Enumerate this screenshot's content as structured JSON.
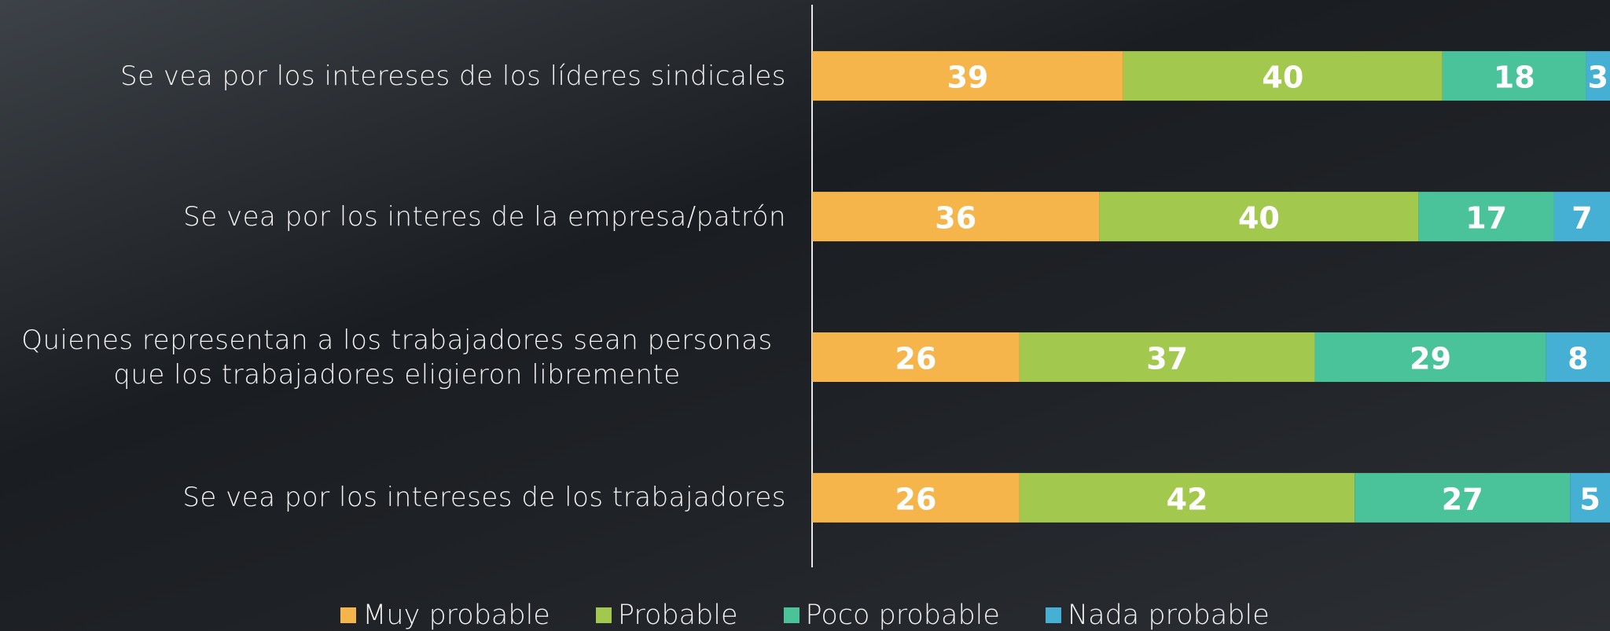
{
  "chart_data": {
    "type": "stacked-barh",
    "categories": [
      "Se vea por los intereses de los líderes sindicales",
      "Se vea por los interes de la empresa/patrón",
      "Quienes representan a los trabajadores sean personas que los trabajadores eligieron libremente",
      "Se vea por los intereses de los trabajadores"
    ],
    "series": [
      {
        "name": "Muy probable",
        "color": "#f5b54a",
        "values": [
          39,
          36,
          26,
          26
        ]
      },
      {
        "name": "Probable",
        "color": "#a2c94e",
        "values": [
          40,
          40,
          37,
          42
        ]
      },
      {
        "name": "Poco probable",
        "color": "#4bc39a",
        "values": [
          18,
          17,
          29,
          27
        ]
      },
      {
        "name": "Nada probable",
        "color": "#45afd4",
        "values": [
          3,
          7,
          8,
          5
        ]
      }
    ],
    "xlim": [
      0,
      100
    ],
    "legend": "bottom"
  }
}
